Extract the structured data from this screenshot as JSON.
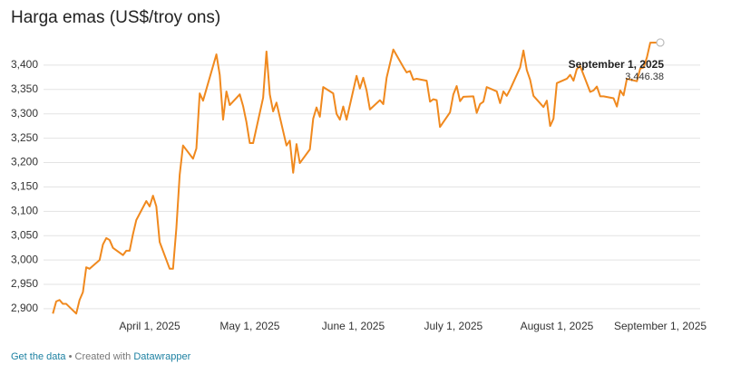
{
  "chart_data": {
    "type": "line",
    "title": "Harga emas (US$/troy ons)",
    "x": [
      "2025-03-03",
      "2025-03-04",
      "2025-03-05",
      "2025-03-06",
      "2025-03-07",
      "2025-03-10",
      "2025-03-11",
      "2025-03-12",
      "2025-03-13",
      "2025-03-14",
      "2025-03-17",
      "2025-03-18",
      "2025-03-19",
      "2025-03-20",
      "2025-03-21",
      "2025-03-24",
      "2025-03-25",
      "2025-03-26",
      "2025-03-27",
      "2025-03-28",
      "2025-03-31",
      "2025-04-01",
      "2025-04-02",
      "2025-04-03",
      "2025-04-04",
      "2025-04-07",
      "2025-04-08",
      "2025-04-09",
      "2025-04-10",
      "2025-04-11",
      "2025-04-14",
      "2025-04-15",
      "2025-04-16",
      "2025-04-17",
      "2025-04-21",
      "2025-04-22",
      "2025-04-23",
      "2025-04-24",
      "2025-04-25",
      "2025-04-28",
      "2025-04-29",
      "2025-04-30",
      "2025-05-01",
      "2025-05-02",
      "2025-05-05",
      "2025-05-06",
      "2025-05-07",
      "2025-05-08",
      "2025-05-09",
      "2025-05-12",
      "2025-05-13",
      "2025-05-14",
      "2025-05-15",
      "2025-05-16",
      "2025-05-19",
      "2025-05-20",
      "2025-05-21",
      "2025-05-22",
      "2025-05-23",
      "2025-05-26",
      "2025-05-27",
      "2025-05-28",
      "2025-05-29",
      "2025-05-30",
      "2025-06-02",
      "2025-06-03",
      "2025-06-04",
      "2025-06-05",
      "2025-06-06",
      "2025-06-09",
      "2025-06-10",
      "2025-06-11",
      "2025-06-13",
      "2025-06-16",
      "2025-06-17",
      "2025-06-18",
      "2025-06-19",
      "2025-06-20",
      "2025-06-23",
      "2025-06-24",
      "2025-06-25",
      "2025-06-26",
      "2025-06-27",
      "2025-06-30",
      "2025-07-01",
      "2025-07-02",
      "2025-07-03",
      "2025-07-04",
      "2025-07-07",
      "2025-07-08",
      "2025-07-09",
      "2025-07-10",
      "2025-07-11",
      "2025-07-14",
      "2025-07-15",
      "2025-07-16",
      "2025-07-17",
      "2025-07-18",
      "2025-07-21",
      "2025-07-22",
      "2025-07-23",
      "2025-07-24",
      "2025-07-25",
      "2025-07-28",
      "2025-07-29",
      "2025-07-30",
      "2025-07-31",
      "2025-08-01",
      "2025-08-04",
      "2025-08-05",
      "2025-08-06",
      "2025-08-07",
      "2025-08-08",
      "2025-08-11",
      "2025-08-12",
      "2025-08-13",
      "2025-08-14",
      "2025-08-15",
      "2025-08-18",
      "2025-08-19",
      "2025-08-20",
      "2025-08-21",
      "2025-08-22",
      "2025-08-25",
      "2025-08-26",
      "2025-08-27",
      "2025-08-28",
      "2025-08-29",
      "2025-09-01"
    ],
    "series": [
      {
        "name": "Harga emas",
        "color": "#f0891e",
        "values": [
          2890,
          2915,
          2918,
          2910,
          2910,
          2890,
          2918,
          2934,
          2985,
          2982,
          3000,
          3032,
          3045,
          3041,
          3025,
          3010,
          3019,
          3019,
          3053,
          3082,
          3121,
          3110,
          3132,
          3110,
          3037,
          2982,
          2982,
          3065,
          3175,
          3235,
          3208,
          3229,
          3342,
          3327,
          3422,
          3380,
          3288,
          3346,
          3318,
          3340,
          3316,
          3283,
          3240,
          3240,
          3333,
          3428,
          3340,
          3305,
          3323,
          3235,
          3245,
          3179,
          3238,
          3199,
          3227,
          3290,
          3313,
          3294,
          3355,
          3342,
          3300,
          3288,
          3315,
          3288,
          3378,
          3352,
          3374,
          3348,
          3309,
          3328,
          3320,
          3374,
          3432,
          3396,
          3385,
          3388,
          3370,
          3372,
          3368,
          3325,
          3330,
          3328,
          3273,
          3303,
          3340,
          3357,
          3326,
          3335,
          3336,
          3302,
          3320,
          3325,
          3355,
          3346,
          3322,
          3346,
          3337,
          3350,
          3395,
          3430,
          3390,
          3370,
          3337,
          3314,
          3327,
          3275,
          3290,
          3363,
          3372,
          3380,
          3368,
          3392,
          3398,
          3345,
          3348,
          3356,
          3336,
          3336,
          3332,
          3315,
          3348,
          3338,
          3372,
          3367,
          3393,
          3395,
          3416,
          3446,
          3446.38
        ],
        "value_labels": [
          null,
          null,
          null,
          null,
          null,
          null,
          null,
          null,
          null,
          null,
          null,
          null,
          null,
          null,
          null,
          null,
          null,
          null,
          null,
          null,
          null,
          null,
          null,
          null,
          null,
          null,
          null,
          null,
          null,
          null,
          null,
          null,
          null,
          null,
          null,
          null,
          null,
          null,
          null,
          null,
          null,
          null,
          null,
          null,
          null,
          null,
          null,
          null,
          null,
          null,
          null,
          null,
          null,
          null,
          null,
          null,
          null,
          null,
          null,
          null,
          null,
          null,
          null,
          null,
          null,
          null,
          null,
          null,
          null,
          null,
          null,
          null,
          null,
          null,
          null,
          null,
          null,
          null,
          null,
          null,
          null,
          null,
          null,
          null,
          null,
          null,
          null,
          null,
          null,
          null,
          null,
          null,
          null,
          null,
          null,
          null,
          null,
          null,
          null,
          null,
          null,
          null,
          null,
          null,
          null,
          null,
          null,
          null,
          null,
          null,
          null,
          null,
          null,
          null,
          null,
          null,
          null,
          null,
          null,
          null,
          null,
          null,
          null,
          null,
          null,
          null,
          null,
          null,
          "3,446.38"
        ]
      }
    ],
    "annotation": "September 1, 2025",
    "xlim": [
      "2025-03-03",
      "2025-09-02"
    ],
    "xticks": [
      {
        "value": "2025-04-01",
        "label": "April 1, 2025"
      },
      {
        "value": "2025-05-01",
        "label": "May 1, 2025"
      },
      {
        "value": "2025-06-01",
        "label": "June 1, 2025"
      },
      {
        "value": "2025-07-01",
        "label": "July 1, 2025"
      },
      {
        "value": "2025-08-01",
        "label": "August 1, 2025"
      },
      {
        "value": "2025-09-01",
        "label": "September 1, 2025"
      }
    ],
    "ylim": [
      2885,
      3450
    ],
    "yticks": [
      {
        "value": 2900,
        "label": "2,900"
      },
      {
        "value": 2950,
        "label": "2,950"
      },
      {
        "value": 3000,
        "label": "3,000"
      },
      {
        "value": 3050,
        "label": "3,050"
      },
      {
        "value": 3100,
        "label": "3,100"
      },
      {
        "value": 3150,
        "label": "3,150"
      },
      {
        "value": 3200,
        "label": "3,200"
      },
      {
        "value": 3250,
        "label": "3,250"
      },
      {
        "value": 3300,
        "label": "3,300"
      },
      {
        "value": 3350,
        "label": "3,350"
      },
      {
        "value": 3400,
        "label": "3,400"
      }
    ],
    "grid": true,
    "footer": {
      "link": "Get the data",
      "text": "• Created with",
      "credit": "Datawrapper"
    }
  }
}
